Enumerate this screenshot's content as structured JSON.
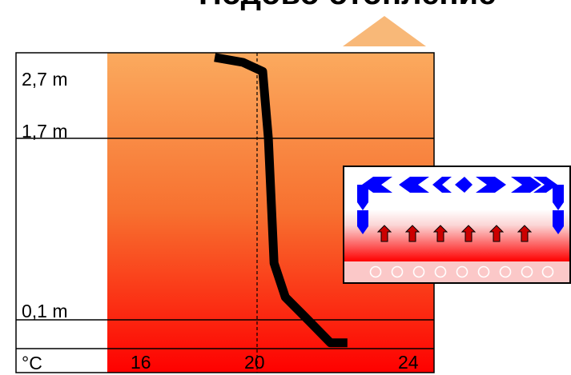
{
  "title": "Подово отопление",
  "y_labels": {
    "top": "2,7 m",
    "mid": "1,7 m",
    "low": "0,1 m"
  },
  "x_labels": {
    "unit": "°C",
    "t16": "16",
    "t20": "20",
    "t24": "24"
  },
  "chart_data": {
    "type": "line",
    "title": "Подово отопление",
    "xlabel": "°C",
    "ylabel": "",
    "x_ticks": [
      16,
      20,
      24
    ],
    "y_ticks": [
      "0,1 m",
      "1,7 m",
      "2,7 m"
    ],
    "series": [
      {
        "points": [
          {
            "height_m": 2.85,
            "temp_c": 18.5
          },
          {
            "height_m": 2.78,
            "temp_c": 19.5
          },
          {
            "height_m": 2.65,
            "temp_c": 20.2
          },
          {
            "height_m": 1.7,
            "temp_c": 20.4
          },
          {
            "height_m": 0.6,
            "temp_c": 20.6
          },
          {
            "height_m": 0.3,
            "temp_c": 21.0
          },
          {
            "height_m": 0.1,
            "temp_c": 21.8
          },
          {
            "height_m": 0.02,
            "temp_c": 22.6
          },
          {
            "height_m": 0.02,
            "temp_c": 23.2
          }
        ]
      }
    ],
    "reference_line_temp_c": 20,
    "colors": {
      "gradient_top": "#FBAA5E",
      "gradient_bottom": "#FE0000",
      "curve": "#000000",
      "air_flow": "#0000FF",
      "heat_arrows": "#CC0000"
    }
  }
}
